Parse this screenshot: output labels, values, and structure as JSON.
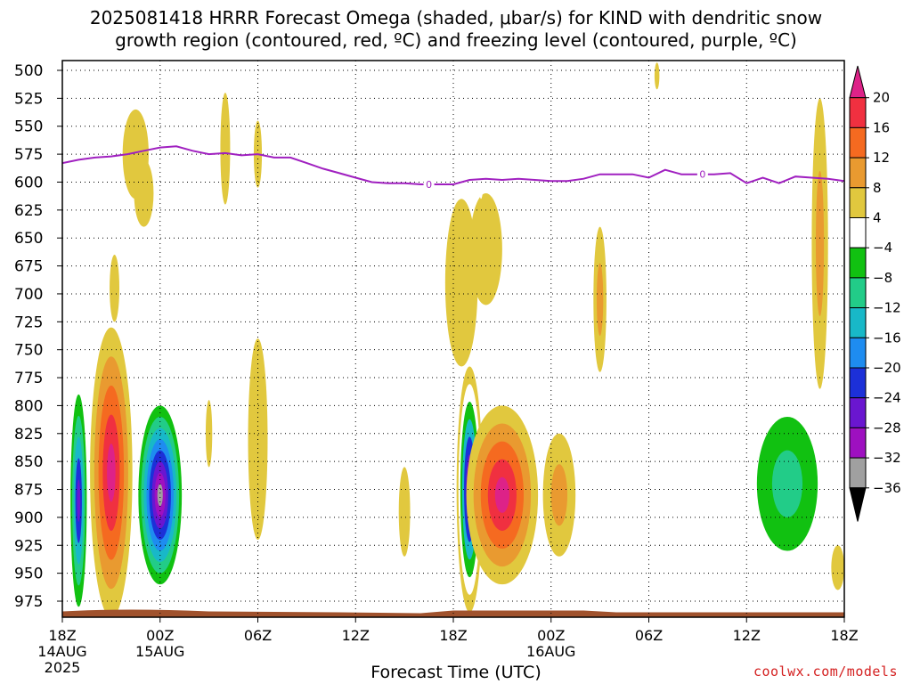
{
  "title": {
    "line1": "2025081418 HRRR Forecast Omega (shaded, μbar/s) for KIND with dendritic snow",
    "line2": "growth region (contoured, red, ºC) and freezing level (contoured, purple, ºC)"
  },
  "credit": "coolwx.com/models",
  "chart_data": {
    "type": "heatmap",
    "title": "2025081418 HRRR Forecast Omega (shaded, μbar/s) for KIND with dendritic snow growth region (contoured, red, ºC) and freezing level (contoured, purple, ºC)",
    "xlabel": "Forecast Time (UTC)",
    "ylabel": "",
    "x_unit": "hours since 2025-08-14 18Z",
    "xlim": [
      0,
      48
    ],
    "ylim": [
      985,
      495
    ],
    "grid": true,
    "x_ticks": [
      {
        "value": 0,
        "label": "18Z",
        "sub1": "14AUG",
        "sub2": "2025"
      },
      {
        "value": 6,
        "label": "00Z",
        "sub1": "15AUG",
        "sub2": ""
      },
      {
        "value": 12,
        "label": "06Z",
        "sub1": "",
        "sub2": ""
      },
      {
        "value": 18,
        "label": "12Z",
        "sub1": "",
        "sub2": ""
      },
      {
        "value": 24,
        "label": "18Z",
        "sub1": "",
        "sub2": ""
      },
      {
        "value": 30,
        "label": "00Z",
        "sub1": "16AUG",
        "sub2": ""
      },
      {
        "value": 36,
        "label": "06Z",
        "sub1": "",
        "sub2": ""
      },
      {
        "value": 42,
        "label": "12Z",
        "sub1": "",
        "sub2": ""
      },
      {
        "value": 48,
        "label": "18Z",
        "sub1": "",
        "sub2": ""
      }
    ],
    "y_ticks": [
      500,
      525,
      550,
      575,
      600,
      625,
      650,
      675,
      700,
      725,
      750,
      775,
      800,
      825,
      850,
      875,
      900,
      925,
      950,
      975
    ],
    "colorbar": {
      "labels": [
        "20",
        "16",
        "12",
        "8",
        "4",
        "−4",
        "−8",
        "−12",
        "−16",
        "−20",
        "−24",
        "−28",
        "−32",
        "−36"
      ],
      "bins": [
        {
          "min": 20,
          "max": null,
          "color": "#dd2288"
        },
        {
          "min": 16,
          "max": 20,
          "color": "#f03040"
        },
        {
          "min": 12,
          "max": 16,
          "color": "#f56a20"
        },
        {
          "min": 8,
          "max": 12,
          "color": "#e99a30"
        },
        {
          "min": 4,
          "max": 8,
          "color": "#e1c83e"
        },
        {
          "min": -4,
          "max": 4,
          "color": "#ffffff"
        },
        {
          "min": -8,
          "max": -4,
          "color": "#11c111"
        },
        {
          "min": -12,
          "max": -8,
          "color": "#22cc88"
        },
        {
          "min": -16,
          "max": -12,
          "color": "#18b8c8"
        },
        {
          "min": -20,
          "max": -16,
          "color": "#1e8cf0"
        },
        {
          "min": -24,
          "max": -20,
          "color": "#1c30d8"
        },
        {
          "min": -28,
          "max": -24,
          "color": "#6a16d0"
        },
        {
          "min": -32,
          "max": -28,
          "color": "#9e10c0"
        },
        {
          "min": -36,
          "max": -32,
          "color": "#a0a0a0"
        },
        {
          "min": null,
          "max": -36,
          "color": "#000000"
        }
      ]
    },
    "shaded_features": [
      {
        "x": 1.0,
        "y": 885,
        "dx": 0.5,
        "dy": 95,
        "levels": [
          -8,
          -12,
          -16,
          -24,
          -28
        ]
      },
      {
        "x": 3.0,
        "y": 860,
        "dx": 1.3,
        "dy": 130,
        "levels": [
          4,
          8,
          12,
          16,
          20
        ]
      },
      {
        "x": 6.0,
        "y": 880,
        "dx": 1.5,
        "dy": 90,
        "levels": [
          -4,
          -8,
          -12,
          -16,
          -20,
          -24,
          -28,
          -32,
          -36
        ]
      },
      {
        "x": 4.5,
        "y": 575,
        "dx": 0.8,
        "dy": 40,
        "levels": [
          4
        ]
      },
      {
        "x": 5.0,
        "y": 610,
        "dx": 0.6,
        "dy": 30,
        "levels": [
          4
        ]
      },
      {
        "x": 8.0,
        "y": 590,
        "dx": 0.3,
        "dy": 55,
        "levels": [
          -4
        ]
      },
      {
        "x": 10.0,
        "y": 570,
        "dx": 0.3,
        "dy": 50,
        "levels": [
          4
        ]
      },
      {
        "x": 12.0,
        "y": 575,
        "dx": 0.25,
        "dy": 30,
        "levels": [
          4
        ]
      },
      {
        "x": 3.2,
        "y": 695,
        "dx": 0.3,
        "dy": 30,
        "levels": [
          4
        ]
      },
      {
        "x": 9.0,
        "y": 825,
        "dx": 0.2,
        "dy": 30,
        "levels": [
          4
        ]
      },
      {
        "x": 12.0,
        "y": 830,
        "dx": 0.6,
        "dy": 90,
        "levels": [
          4
        ]
      },
      {
        "x": 14.0,
        "y": 800,
        "dx": 0.2,
        "dy": 45,
        "levels": [
          -4
        ]
      },
      {
        "x": 13.0,
        "y": 955,
        "dx": 1.0,
        "dy": 12,
        "levels": [
          -4
        ]
      },
      {
        "x": 21.0,
        "y": 895,
        "dx": 0.35,
        "dy": 40,
        "levels": [
          4
        ]
      },
      {
        "x": 25.0,
        "y": 875,
        "dx": 0.8,
        "dy": 110,
        "levels": [
          4,
          -4,
          -8,
          -16,
          -24,
          -28,
          -36
        ]
      },
      {
        "x": 24.5,
        "y": 690,
        "dx": 1.0,
        "dy": 75,
        "levels": [
          4
        ]
      },
      {
        "x": 27.0,
        "y": 880,
        "dx": 2.2,
        "dy": 80,
        "levels": [
          4,
          8,
          12,
          16,
          20
        ]
      },
      {
        "x": 30.5,
        "y": 880,
        "dx": 1.0,
        "dy": 55,
        "levels": [
          4,
          8
        ]
      },
      {
        "x": 26.0,
        "y": 660,
        "dx": 1.0,
        "dy": 50,
        "levels": [
          4
        ]
      },
      {
        "x": 25.7,
        "y": 555,
        "dx": 0.25,
        "dy": 60,
        "levels": [
          -4
        ]
      },
      {
        "x": 29.8,
        "y": 540,
        "dx": 0.8,
        "dy": 45,
        "levels": [
          -4
        ]
      },
      {
        "x": 33.0,
        "y": 705,
        "dx": 0.4,
        "dy": 65,
        "levels": [
          4,
          8
        ]
      },
      {
        "x": 34.5,
        "y": 690,
        "dx": 0.2,
        "dy": 40,
        "levels": [
          -4
        ]
      },
      {
        "x": 34.7,
        "y": 880,
        "dx": 0.15,
        "dy": 30,
        "levels": [
          -4
        ]
      },
      {
        "x": 32.6,
        "y": 880,
        "dx": 0.2,
        "dy": 40,
        "levels": [
          -4
        ]
      },
      {
        "x": 36.5,
        "y": 505,
        "dx": 0.15,
        "dy": 12,
        "levels": [
          4
        ]
      },
      {
        "x": 44.5,
        "y": 870,
        "dx": 2.8,
        "dy": 90,
        "levels": [
          -4,
          -8,
          -12
        ]
      },
      {
        "x": 42.7,
        "y": 755,
        "dx": 0.5,
        "dy": 65,
        "levels": [
          -4
        ]
      },
      {
        "x": 46.5,
        "y": 655,
        "dx": 0.5,
        "dy": 130,
        "levels": [
          4,
          8
        ]
      },
      {
        "x": 47.5,
        "y": 660,
        "dx": 0.3,
        "dy": 90,
        "levels": [
          -4
        ]
      },
      {
        "x": 47.6,
        "y": 945,
        "dx": 0.4,
        "dy": 20,
        "levels": [
          4
        ]
      }
    ],
    "freezing_level_contour": {
      "label": "0",
      "color": "#a020c0",
      "x": [
        0,
        1,
        2,
        3,
        4,
        5,
        6,
        7,
        8,
        9,
        10,
        11,
        12,
        13,
        14,
        15,
        16,
        17,
        18,
        19,
        20,
        21,
        22,
        23,
        24,
        25,
        26,
        27,
        28,
        29,
        30,
        31,
        32,
        33,
        34,
        35,
        36,
        37,
        38,
        39,
        40,
        41,
        42,
        43,
        44,
        45,
        46,
        47,
        48
      ],
      "y": [
        583,
        580,
        578,
        577,
        575,
        572,
        569,
        568,
        572,
        575,
        574,
        576,
        575,
        578,
        578,
        583,
        588,
        592,
        596,
        600,
        601,
        601,
        602,
        602,
        602,
        598,
        597,
        598,
        597,
        598,
        599,
        599,
        597,
        593,
        593,
        593,
        596,
        589,
        593,
        593,
        593,
        592,
        601,
        596,
        601,
        595,
        596,
        597,
        599
      ]
    },
    "terrain": {
      "color": "#a0522d",
      "base_pressure": [
        985,
        985,
        985
      ]
    }
  },
  "x_axis_title": "Forecast Time (UTC)"
}
